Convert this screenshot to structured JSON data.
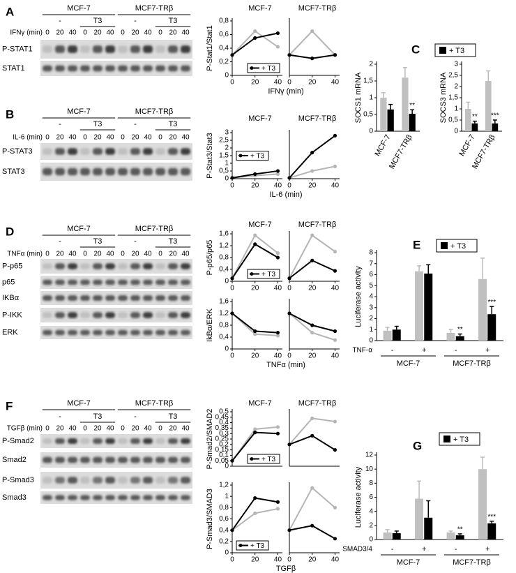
{
  "panel_letters": [
    "A",
    "B",
    "C",
    "D",
    "E",
    "F",
    "G"
  ],
  "blots": [
    {
      "stimulus": "IFNγ (min)",
      "cell_lines": [
        "MCF-7",
        "MCF7-TRβ"
      ],
      "treatments": [
        "-",
        "T3"
      ],
      "times": [
        "0",
        "20",
        "40"
      ],
      "rows": [
        "P-STAT1",
        "STAT1"
      ]
    },
    {
      "stimulus": "IL-6 (min)",
      "cell_lines": [
        "MCF-7",
        "MCF7-TRβ"
      ],
      "treatments": [
        "-",
        "T3"
      ],
      "times": [
        "0",
        "20",
        "40"
      ],
      "rows": [
        "P-STAT3",
        "STAT3"
      ]
    },
    {
      "stimulus": "TNFα (min)",
      "cell_lines": [
        "MCF-7",
        "MCF7-TRβ"
      ],
      "treatments": [
        "-",
        "T3"
      ],
      "times": [
        "0",
        "20",
        "40"
      ],
      "rows": [
        "P-p65",
        "p65",
        "IKBα",
        "P-IKK",
        "ERK"
      ]
    },
    {
      "stimulus": "TGFβ (min)",
      "cell_lines": [
        "MCF-7",
        "MCF7-TRβ"
      ],
      "treatments": [
        "-",
        "T3"
      ],
      "times": [
        "0",
        "20",
        "40"
      ],
      "rows": [
        "P-Smad2",
        "Smad2",
        "P-Smad3",
        "Smad3"
      ]
    }
  ],
  "chart_data": [
    {
      "type": "line",
      "title": "MCF-7",
      "ylabel": "P-Stat1/Stat1",
      "xlabel": "IFNγ (min)",
      "x": [
        0,
        20,
        40
      ],
      "xlim": [
        0,
        44
      ],
      "xticks": [
        0,
        20,
        40
      ],
      "ylim": [
        0,
        0.8
      ],
      "yticks": [
        0,
        {
          "value": 0.2,
          "label": "0,2"
        },
        {
          "value": 0.4,
          "label": "0,4"
        },
        {
          "value": 0.6,
          "label": "0,6"
        },
        {
          "value": 0.8,
          "label": "0,8"
        }
      ],
      "legend": "lower right",
      "series": [
        {
          "color": "#b5b5b5",
          "values": [
            0.3,
            0.65,
            0.42
          ]
        },
        {
          "name": "+ T3",
          "color": "#000000",
          "values": [
            0.3,
            0.55,
            0.62
          ]
        }
      ]
    },
    {
      "type": "line",
      "title": "MCF7-TRβ",
      "x": [
        0,
        20,
        40
      ],
      "xlim": [
        0,
        44
      ],
      "xticks": [
        0,
        20,
        40
      ],
      "ylim": [
        0,
        0.8
      ],
      "series": [
        {
          "color": "#b5b5b5",
          "values": [
            0.3,
            0.65,
            0.3
          ]
        },
        {
          "color": "#000000",
          "values": [
            0.3,
            0.25,
            0.3
          ]
        }
      ]
    },
    {
      "type": "line",
      "title": "MCF-7",
      "ylabel": "P-Stat3/Stat3",
      "xlabel": "IL-6 (min)",
      "x": [
        0,
        20,
        40
      ],
      "xlim": [
        0,
        44
      ],
      "xticks": [
        0,
        20,
        40
      ],
      "ylim": [
        0,
        3
      ],
      "yticks": [
        0,
        {
          "value": 0.5,
          "label": "0,5"
        },
        1,
        {
          "value": 1.5,
          "label": "1,5"
        },
        2,
        {
          "value": 2.5,
          "label": "2,5"
        },
        3
      ],
      "legend": "center left",
      "series": [
        {
          "color": "#b5b5b5",
          "values": [
            0.05,
            0.2,
            0.3
          ]
        },
        {
          "name": "+ T3",
          "color": "#000000",
          "values": [
            0.05,
            0.3,
            0.5
          ]
        }
      ]
    },
    {
      "type": "line",
      "title": "MCF7-TRβ",
      "x": [
        0,
        20,
        40
      ],
      "xlim": [
        0,
        44
      ],
      "xticks": [
        0,
        20,
        40
      ],
      "ylim": [
        0,
        3
      ],
      "series": [
        {
          "color": "#b5b5b5",
          "values": [
            0.05,
            0.5,
            0.8
          ]
        },
        {
          "color": "#000000",
          "values": [
            0.05,
            1.7,
            2.8
          ]
        }
      ]
    },
    {
      "type": "bar",
      "ylabel": "SOCS1 mRNA",
      "categories": [
        "MCF-7",
        "MCF7-TRβ"
      ],
      "ylim": [
        0,
        2
      ],
      "yticks": [
        0,
        {
          "value": 0.5,
          "label": "0,5"
        },
        1,
        {
          "value": 1.5,
          "label": "1,5"
        },
        2
      ],
      "legend": "upper center",
      "series": [
        {
          "color": "#c0c0c0",
          "values": [
            1.0,
            1.6
          ],
          "errors": [
            0.15,
            0.3
          ]
        },
        {
          "name": "+ T3",
          "color": "#000000",
          "values": [
            0.65,
            0.52
          ],
          "errors": [
            0.15,
            0.12
          ],
          "significance": [
            null,
            "**"
          ]
        }
      ]
    },
    {
      "type": "bar",
      "ylabel": "SOCS3 mRNA",
      "categories": [
        "MCF-7",
        "MCF7-TRβ"
      ],
      "ylim": [
        0,
        3
      ],
      "yticks": [
        0,
        {
          "value": 0.5,
          "label": "0,5"
        },
        1,
        {
          "value": 1.5,
          "label": "1,5"
        },
        2,
        {
          "value": 2.5,
          "label": "2,5"
        },
        3
      ],
      "series": [
        {
          "color": "#c0c0c0",
          "values": [
            1.0,
            2.25
          ],
          "errors": [
            0.3,
            0.45
          ]
        },
        {
          "color": "#000000",
          "values": [
            0.35,
            0.35
          ],
          "errors": [
            0.1,
            0.15
          ],
          "significance": [
            "**",
            "***"
          ]
        }
      ]
    },
    {
      "type": "line",
      "title": "MCF-7",
      "ylabel": "P-p65/p65",
      "x": [
        0,
        20,
        40
      ],
      "xlim": [
        0,
        44
      ],
      "xticks": [
        0,
        20,
        40
      ],
      "ylim": [
        0,
        1.6
      ],
      "yticks": [
        0,
        {
          "value": 0.4,
          "label": "0,4"
        },
        {
          "value": 0.8,
          "label": "0,8"
        },
        {
          "value": 1.2,
          "label": "1,2"
        },
        {
          "value": 1.6,
          "label": "1,6"
        }
      ],
      "legend": "lower right",
      "series": [
        {
          "color": "#b5b5b5",
          "values": [
            0.1,
            1.55,
            0.95
          ]
        },
        {
          "name": "+ T3",
          "color": "#000000",
          "values": [
            0.1,
            1.25,
            0.8
          ]
        }
      ]
    },
    {
      "type": "line",
      "title": "MCF7-TRβ",
      "x": [
        0,
        20,
        40
      ],
      "xlim": [
        0,
        44
      ],
      "xticks": [
        0,
        20,
        40
      ],
      "ylim": [
        0,
        1.6
      ],
      "series": [
        {
          "color": "#b5b5b5",
          "values": [
            0.1,
            1.55,
            1.0
          ]
        },
        {
          "color": "#000000",
          "values": [
            0.1,
            0.7,
            0.35
          ]
        }
      ]
    },
    {
      "type": "line",
      "ylabel": "IkBα/ERK",
      "xlabel": "TNFα (min)",
      "x": [
        0,
        20,
        40
      ],
      "xlim": [
        0,
        44
      ],
      "xticks": [
        0,
        20,
        40
      ],
      "ylim": [
        0,
        1.6
      ],
      "yticks": [
        0,
        {
          "value": 0.4,
          "label": "0,4"
        },
        {
          "value": 0.8,
          "label": "0,8"
        },
        {
          "value": 1.2,
          "label": "1,2"
        },
        {
          "value": 1.6,
          "label": "1,6"
        }
      ],
      "series": [
        {
          "color": "#b5b5b5",
          "values": [
            1.2,
            0.5,
            0.45
          ]
        },
        {
          "color": "#000000",
          "values": [
            1.2,
            0.6,
            0.55
          ]
        }
      ]
    },
    {
      "type": "line",
      "x": [
        0,
        20,
        40
      ],
      "xlim": [
        0,
        44
      ],
      "xticks": [
        0,
        20,
        40
      ],
      "ylim": [
        0,
        1.6
      ],
      "series": [
        {
          "color": "#b5b5b5",
          "values": [
            1.2,
            0.55,
            0.3
          ]
        },
        {
          "color": "#000000",
          "values": [
            1.2,
            0.8,
            0.6
          ]
        }
      ]
    },
    {
      "type": "bar",
      "ylabel": "Luciferase activity",
      "categories": [
        "-",
        "+",
        "-",
        "+"
      ],
      "groups": [
        "MCF-7",
        "MCF7-TRβ"
      ],
      "factor": "TNF-α",
      "ylim": [
        0,
        8
      ],
      "yticks": [
        0,
        1,
        2,
        3,
        4,
        5,
        6,
        7,
        8
      ],
      "legend": "upper center",
      "series": [
        {
          "color": "#c0c0c0",
          "values": [
            0.9,
            6.3,
            0.7,
            5.6
          ],
          "errors": [
            0.3,
            0.5,
            0.3,
            1.9
          ]
        },
        {
          "name": "+ T3",
          "color": "#000000",
          "values": [
            1.0,
            6.1,
            0.4,
            2.4
          ],
          "errors": [
            0.3,
            0.8,
            0.2,
            0.7
          ],
          "significance": [
            null,
            null,
            "**",
            "***"
          ]
        }
      ]
    },
    {
      "type": "line",
      "title": "MCF-7",
      "ylabel": "P-Smad2/SMAD2",
      "x": [
        0,
        20,
        40
      ],
      "xlim": [
        0,
        44
      ],
      "ylim": [
        0,
        0.5
      ],
      "yticks": [
        0,
        {
          "value": 0.05,
          "label": "0,05"
        },
        {
          "value": 0.1,
          "label": "0,1"
        },
        {
          "value": 0.15,
          "label": "0,15"
        },
        {
          "value": 0.2,
          "label": "0,2"
        },
        {
          "value": 0.25,
          "label": "0,25"
        },
        {
          "value": 0.3,
          "label": "0,3"
        },
        {
          "value": 0.35,
          "label": "0,35"
        },
        {
          "value": 0.4,
          "label": "0,4"
        },
        {
          "value": 0.45,
          "label": "0,45"
        },
        {
          "value": 0.5,
          "label": "0,5"
        }
      ],
      "legend": "lower right",
      "series": [
        {
          "color": "#b5b5b5",
          "values": [
            0.05,
            0.34,
            0.36
          ]
        },
        {
          "name": "+ T3",
          "color": "#000000",
          "values": [
            0.05,
            0.31,
            0.3
          ]
        }
      ]
    },
    {
      "type": "line",
      "title": "MCF7-TRβ",
      "x": [
        0,
        20,
        40
      ],
      "xlim": [
        0,
        44
      ],
      "ylim": [
        0,
        0.5
      ],
      "series": [
        {
          "color": "#b5b5b5",
          "values": [
            0.2,
            0.44,
            0.41
          ]
        },
        {
          "color": "#000000",
          "values": [
            0.2,
            0.28,
            0.15
          ]
        }
      ]
    },
    {
      "type": "line",
      "ylabel": "P-Smad3/SMAD3",
      "xlabel": "TGFβ",
      "x": [
        0,
        20,
        40
      ],
      "xlim": [
        0,
        44
      ],
      "xticks": [
        0,
        20,
        40
      ],
      "ylim": [
        0,
        1.2
      ],
      "yticks": [
        0,
        {
          "value": 0.2,
          "label": "0,2"
        },
        {
          "value": 0.4,
          "label": "0,4"
        },
        {
          "value": 0.6,
          "label": "0,6"
        },
        {
          "value": 0.8,
          "label": "0,8"
        },
        1,
        {
          "value": 1.2,
          "label": "1,2"
        }
      ],
      "legend": "lower left",
      "series": [
        {
          "color": "#b5b5b5",
          "values": [
            0.4,
            0.7,
            0.78
          ]
        },
        {
          "name": "+ T3",
          "color": "#000000",
          "values": [
            0.4,
            0.97,
            0.9
          ]
        }
      ]
    },
    {
      "type": "line",
      "x": [
        0,
        20,
        40
      ],
      "xlim": [
        0,
        44
      ],
      "xticks": [
        0,
        20,
        40
      ],
      "ylim": [
        0,
        1.2
      ],
      "series": [
        {
          "color": "#b5b5b5",
          "values": [
            0.4,
            1.15,
            0.8
          ]
        },
        {
          "color": "#000000",
          "values": [
            0.4,
            0.48,
            0.25
          ]
        }
      ]
    },
    {
      "type": "bar",
      "ylabel": "Luciferase activity",
      "categories": [
        "-",
        "+",
        "-",
        "+"
      ],
      "groups": [
        "MCF-7",
        "MCF7-TRβ"
      ],
      "factor": "SMAD3/4",
      "ylim": [
        0,
        12
      ],
      "yticks": [
        0,
        2,
        4,
        6,
        8,
        10,
        12
      ],
      "legend": "upper center",
      "series": [
        {
          "color": "#c0c0c0",
          "values": [
            1.0,
            5.8,
            1.0,
            10.0
          ],
          "errors": [
            0.4,
            2.5,
            0.2,
            1.7
          ]
        },
        {
          "name": "+ T3",
          "color": "#000000",
          "values": [
            0.9,
            3.1,
            0.6,
            2.3
          ],
          "errors": [
            0.3,
            2.4,
            0.2,
            0.3
          ],
          "significance": [
            null,
            null,
            "**",
            "***"
          ]
        }
      ]
    }
  ]
}
